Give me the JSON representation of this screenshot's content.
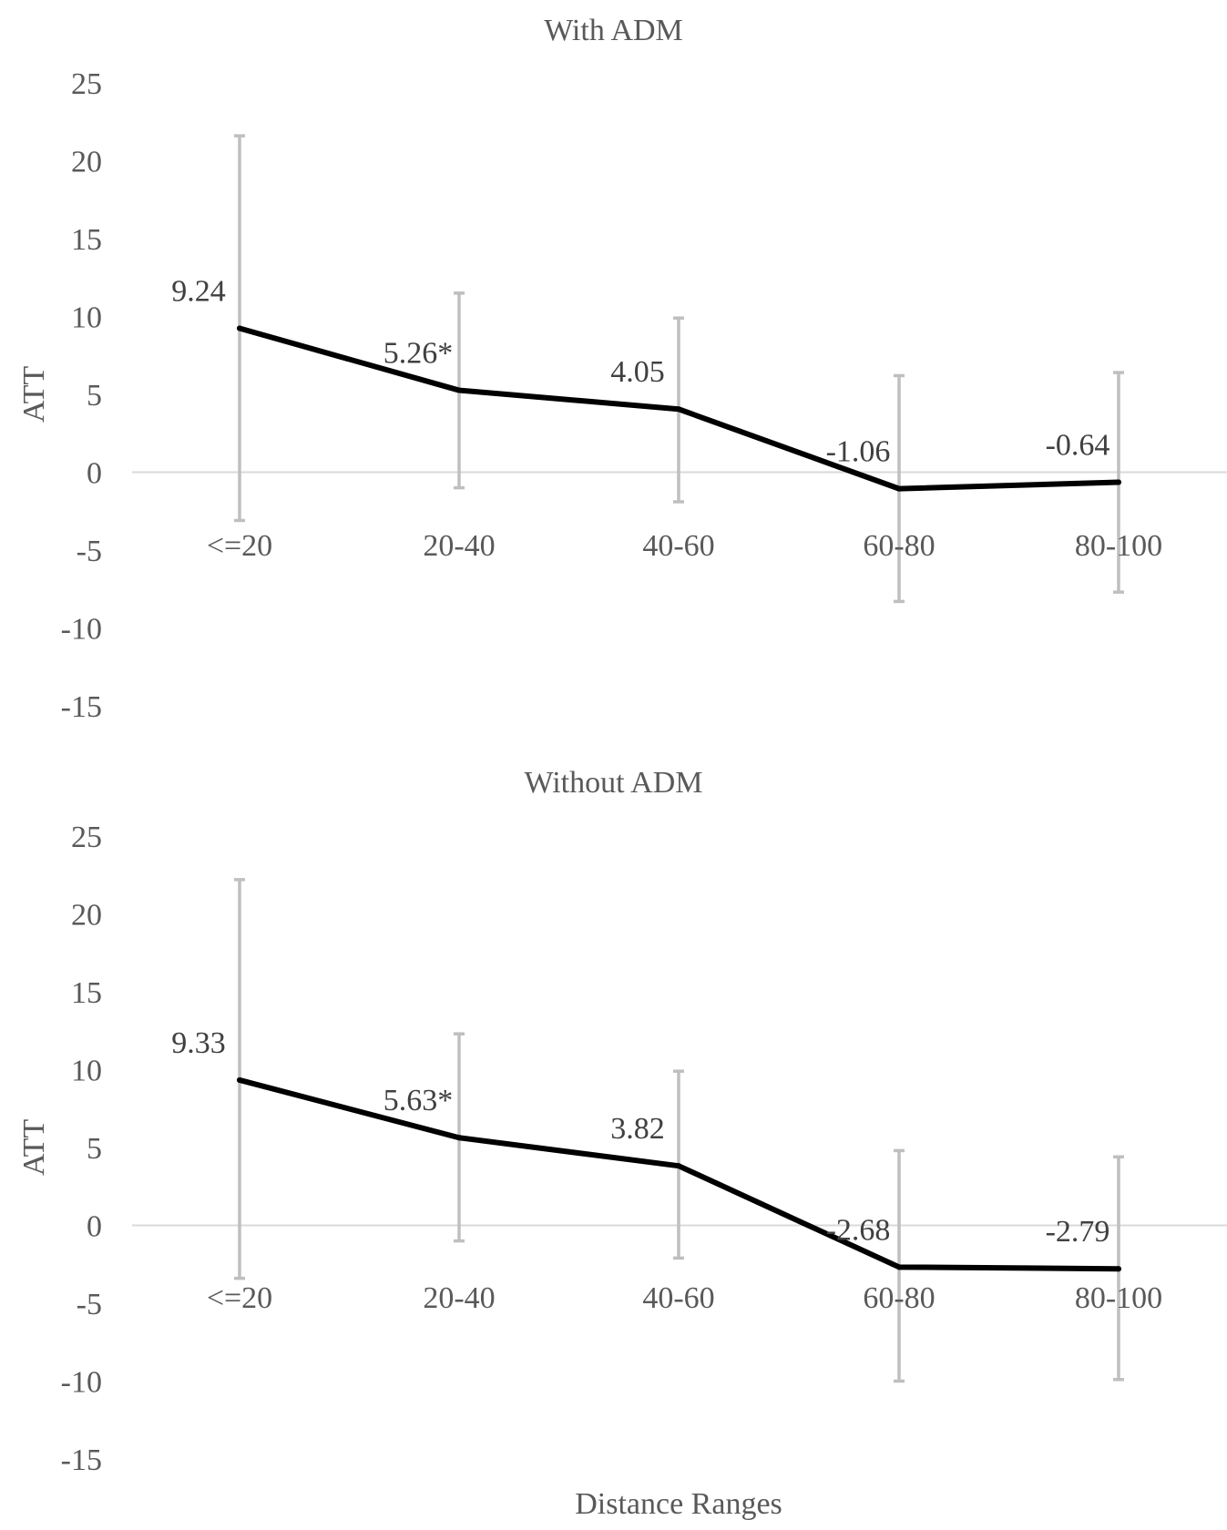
{
  "chart_data": [
    {
      "type": "line",
      "title": "With ADM",
      "ylabel": "ATT",
      "xlabel": "",
      "ylim": [
        -15,
        25
      ],
      "yticks": [
        25,
        20,
        15,
        10,
        5,
        0,
        -5,
        -10,
        -15
      ],
      "ytick_labels": [
        "25",
        "20",
        "15",
        "10",
        "5",
        "0",
        "-5",
        "-10",
        "-15"
      ],
      "categories": [
        "<=20",
        "20-40",
        "40-60",
        "60-80",
        "80-100"
      ],
      "values": [
        9.24,
        5.26,
        4.05,
        -1.06,
        -0.64
      ],
      "data_labels": [
        "9.24",
        "5.26*",
        "4.05",
        "-1.06",
        "-0.64"
      ],
      "error_bars": [
        {
          "low": -3.1,
          "high": 21.6
        },
        {
          "low": -1.0,
          "high": 11.5
        },
        {
          "low": -1.9,
          "high": 9.9
        },
        {
          "low": -8.3,
          "high": 6.2
        },
        {
          "low": -7.7,
          "high": 6.4
        }
      ],
      "grid": false,
      "colors": {
        "line": "#000000",
        "error_bar": "#bfbfbf",
        "zero_line": "#d9d9d9"
      }
    },
    {
      "type": "line",
      "title": "Without ADM",
      "ylabel": "ATT",
      "xlabel": "Distance Ranges",
      "ylim": [
        -15,
        25
      ],
      "yticks": [
        25,
        20,
        15,
        10,
        5,
        0,
        -5,
        -10,
        -15
      ],
      "ytick_labels": [
        "25",
        "20",
        "15",
        "10",
        "5",
        "0",
        "-5",
        "-10",
        "-15"
      ],
      "categories": [
        "<=20",
        "20-40",
        "40-60",
        "60-80",
        "80-100"
      ],
      "values": [
        9.33,
        5.63,
        3.82,
        -2.68,
        -2.79
      ],
      "data_labels": [
        "9.33",
        "5.63*",
        "3.82",
        "-2.68",
        "-2.79"
      ],
      "error_bars": [
        {
          "low": -3.4,
          "high": 22.2
        },
        {
          "low": -1.0,
          "high": 12.3
        },
        {
          "low": -2.1,
          "high": 9.9
        },
        {
          "low": -10.0,
          "high": 4.8
        },
        {
          "low": -9.9,
          "high": 4.4
        }
      ],
      "grid": false,
      "colors": {
        "line": "#000000",
        "error_bar": "#bfbfbf",
        "zero_line": "#d9d9d9"
      }
    }
  ]
}
